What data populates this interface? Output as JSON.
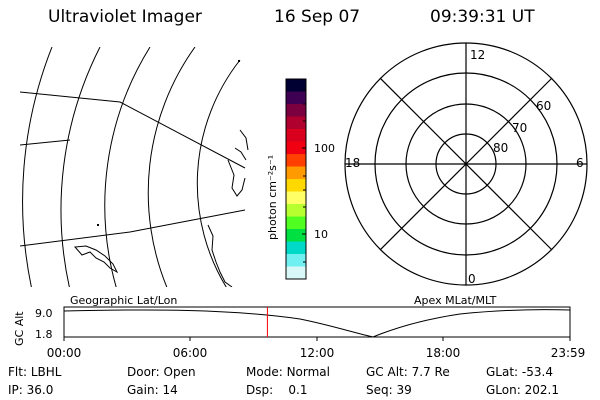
{
  "header": {
    "instrument": "Ultraviolet Imager",
    "date": "16 Sep 07",
    "time": "09:39:31 UT"
  },
  "colorbar": {
    "unit_label": "photon cm⁻²s⁻¹",
    "ticks": [
      "100",
      "10"
    ],
    "colors": [
      "#000033",
      "#3d0052",
      "#7a0040",
      "#b0002e",
      "#d8001c",
      "#f00010",
      "#ff4000",
      "#ff9a00",
      "#ffd800",
      "#ffff66",
      "#b8ff30",
      "#50ff20",
      "#00e040",
      "#00d8c8",
      "#70f0f0",
      "#d8f8f8"
    ]
  },
  "polar_plot": {
    "mlt_labels": [
      "12",
      "18",
      "6",
      "0"
    ],
    "lat_labels": [
      "60",
      "70",
      "80"
    ]
  },
  "map_labels": {
    "geographic": "Geographic Lat/Lon",
    "apex": "Apex MLat/MLT"
  },
  "altitude_panel": {
    "axis_title": "GC Alt",
    "y_ticks": [
      "9.0",
      "1.8"
    ],
    "time_ticks": [
      "00:00",
      "06:00",
      "12:00",
      "18:00",
      "23:59"
    ],
    "current_time_fraction": 0.402,
    "curve_color": "#000000",
    "marker_color": "#ff0000"
  },
  "status": {
    "row1": [
      {
        "label": "Flt:",
        "value": "LBHL"
      },
      {
        "label": "Door:",
        "value": "Open"
      },
      {
        "label": "Mode:",
        "value": "Normal"
      },
      {
        "label": "GC Alt:",
        "value": "7.7 Re"
      },
      {
        "label": "GLat:",
        "value": "-53.4"
      }
    ],
    "row2": [
      {
        "label": "IP:",
        "value": "36.0"
      },
      {
        "label": "Gain:",
        "value": "14"
      },
      {
        "label": "Dsp:",
        "value": "0.1"
      },
      {
        "label": "Seq:",
        "value": "39"
      },
      {
        "label": "GLon:",
        "value": "202.1"
      }
    ]
  }
}
